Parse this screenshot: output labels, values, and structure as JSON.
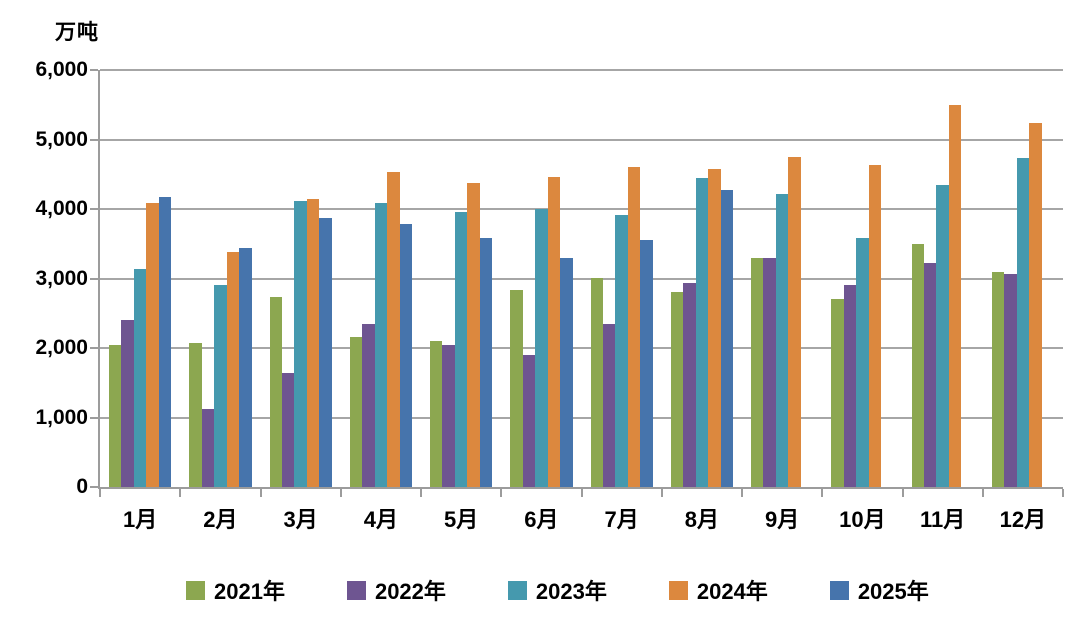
{
  "chart_data": {
    "type": "bar",
    "title": "",
    "unit_label": "万吨",
    "categories": [
      "1月",
      "2月",
      "3月",
      "4月",
      "5月",
      "6月",
      "7月",
      "8月",
      "9月",
      "10月",
      "11月",
      "12月"
    ],
    "series": [
      {
        "name": "2021年",
        "color": "#8CA750",
        "values": [
          2050,
          2070,
          2740,
          2160,
          2100,
          2840,
          3010,
          2800,
          3290,
          2700,
          3500,
          3090
        ]
      },
      {
        "name": "2022年",
        "color": "#6E5591",
        "values": [
          2400,
          1120,
          1640,
          2350,
          2050,
          1900,
          2350,
          2940,
          3300,
          2910,
          3230,
          3070
        ]
      },
      {
        "name": "2023年",
        "color": "#4599AE",
        "values": [
          3140,
          2910,
          4110,
          4080,
          3950,
          4000,
          3920,
          4440,
          4210,
          3590,
          4340,
          4730
        ]
      },
      {
        "name": "2024年",
        "color": "#DC883E",
        "values": [
          4080,
          3380,
          4140,
          4530,
          4380,
          4460,
          4610,
          4580,
          4750,
          4630,
          5500,
          5240
        ]
      },
      {
        "name": "2025年",
        "color": "#4674AC",
        "values": [
          4170,
          3440,
          3870,
          3780,
          3590,
          3300,
          3560,
          4270,
          null,
          null,
          null,
          null
        ]
      }
    ],
    "ylim": [
      0,
      6000
    ],
    "ytick_step": 1000,
    "ytick_labels": [
      "0",
      "1,000",
      "2,000",
      "3,000",
      "4,000",
      "5,000",
      "6,000"
    ],
    "grid": true,
    "legend_position": "bottom"
  }
}
